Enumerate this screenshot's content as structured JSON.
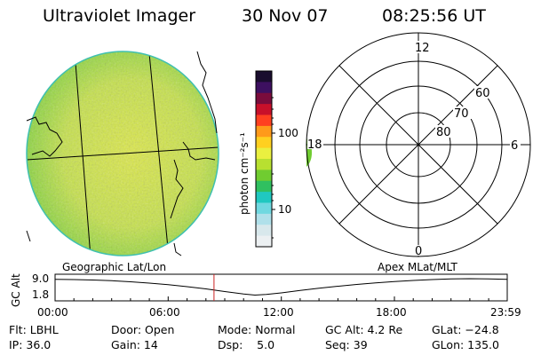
{
  "header": {
    "title": "Ultraviolet Imager",
    "date": "30 Nov 07",
    "time": "08:25:56 UT"
  },
  "colorbar": {
    "unit_label": "photon cm⁻²s⁻¹",
    "tick_labels": [
      "100",
      "10"
    ],
    "colors": [
      "#1a0d2e",
      "#3d1060",
      "#7a0c3c",
      "#c8102a",
      "#ff4020",
      "#ff9a1a",
      "#ffd020",
      "#eaf040",
      "#b8e030",
      "#70cc30",
      "#30c060",
      "#20c8c0",
      "#70d8e0",
      "#b0e0ea",
      "#d8e8ec",
      "#ecf0f2"
    ]
  },
  "polar_plot": {
    "mlt_labels": [
      "12",
      "18",
      "6",
      "0"
    ],
    "mlat_labels": [
      "60",
      "70",
      "80"
    ]
  },
  "earth_image": {
    "disk_color": "#c6e24a",
    "edge_color": "#3fc0b0"
  },
  "panel_labels": {
    "left": "Geographic Lat/Lon",
    "right": "Apex MLat/MLT"
  },
  "altitude_plot": {
    "ylabel": "GC Alt",
    "y_ticks": [
      "9.0",
      "1.8"
    ],
    "x_ticks": [
      "00:00",
      "06:00",
      "12:00",
      "18:00",
      "23:59"
    ],
    "current_time_hours": 8.43,
    "marker_color": "#cc2222",
    "curve": {
      "x_hours": [
        0,
        1,
        2,
        3,
        4,
        5,
        6,
        7,
        8,
        9,
        10,
        10.6,
        11.2,
        12,
        13,
        14,
        15,
        16,
        17,
        18,
        19,
        20,
        21,
        22,
        23,
        23.98
      ],
      "alt_re": [
        8.7,
        8.6,
        8.4,
        8.1,
        7.6,
        7.0,
        6.3,
        5.4,
        4.4,
        3.2,
        2.1,
        1.6,
        1.9,
        2.6,
        3.7,
        4.7,
        5.6,
        6.4,
        7.1,
        7.7,
        8.2,
        8.6,
        8.9,
        9.0,
        8.9,
        8.7
      ]
    }
  },
  "info": {
    "filter": "Flt: LBHL",
    "door": "Door: Open",
    "mode": "Mode: Normal",
    "gc_alt": "GC Alt: 4.2 Re",
    "glat": "GLat: −24.8",
    "ip": "IP: 36.0",
    "gain": "Gain: 14",
    "dsp": "Dsp:    5.0",
    "seq": "Seq: 39",
    "glon": "GLon: 135.0"
  }
}
